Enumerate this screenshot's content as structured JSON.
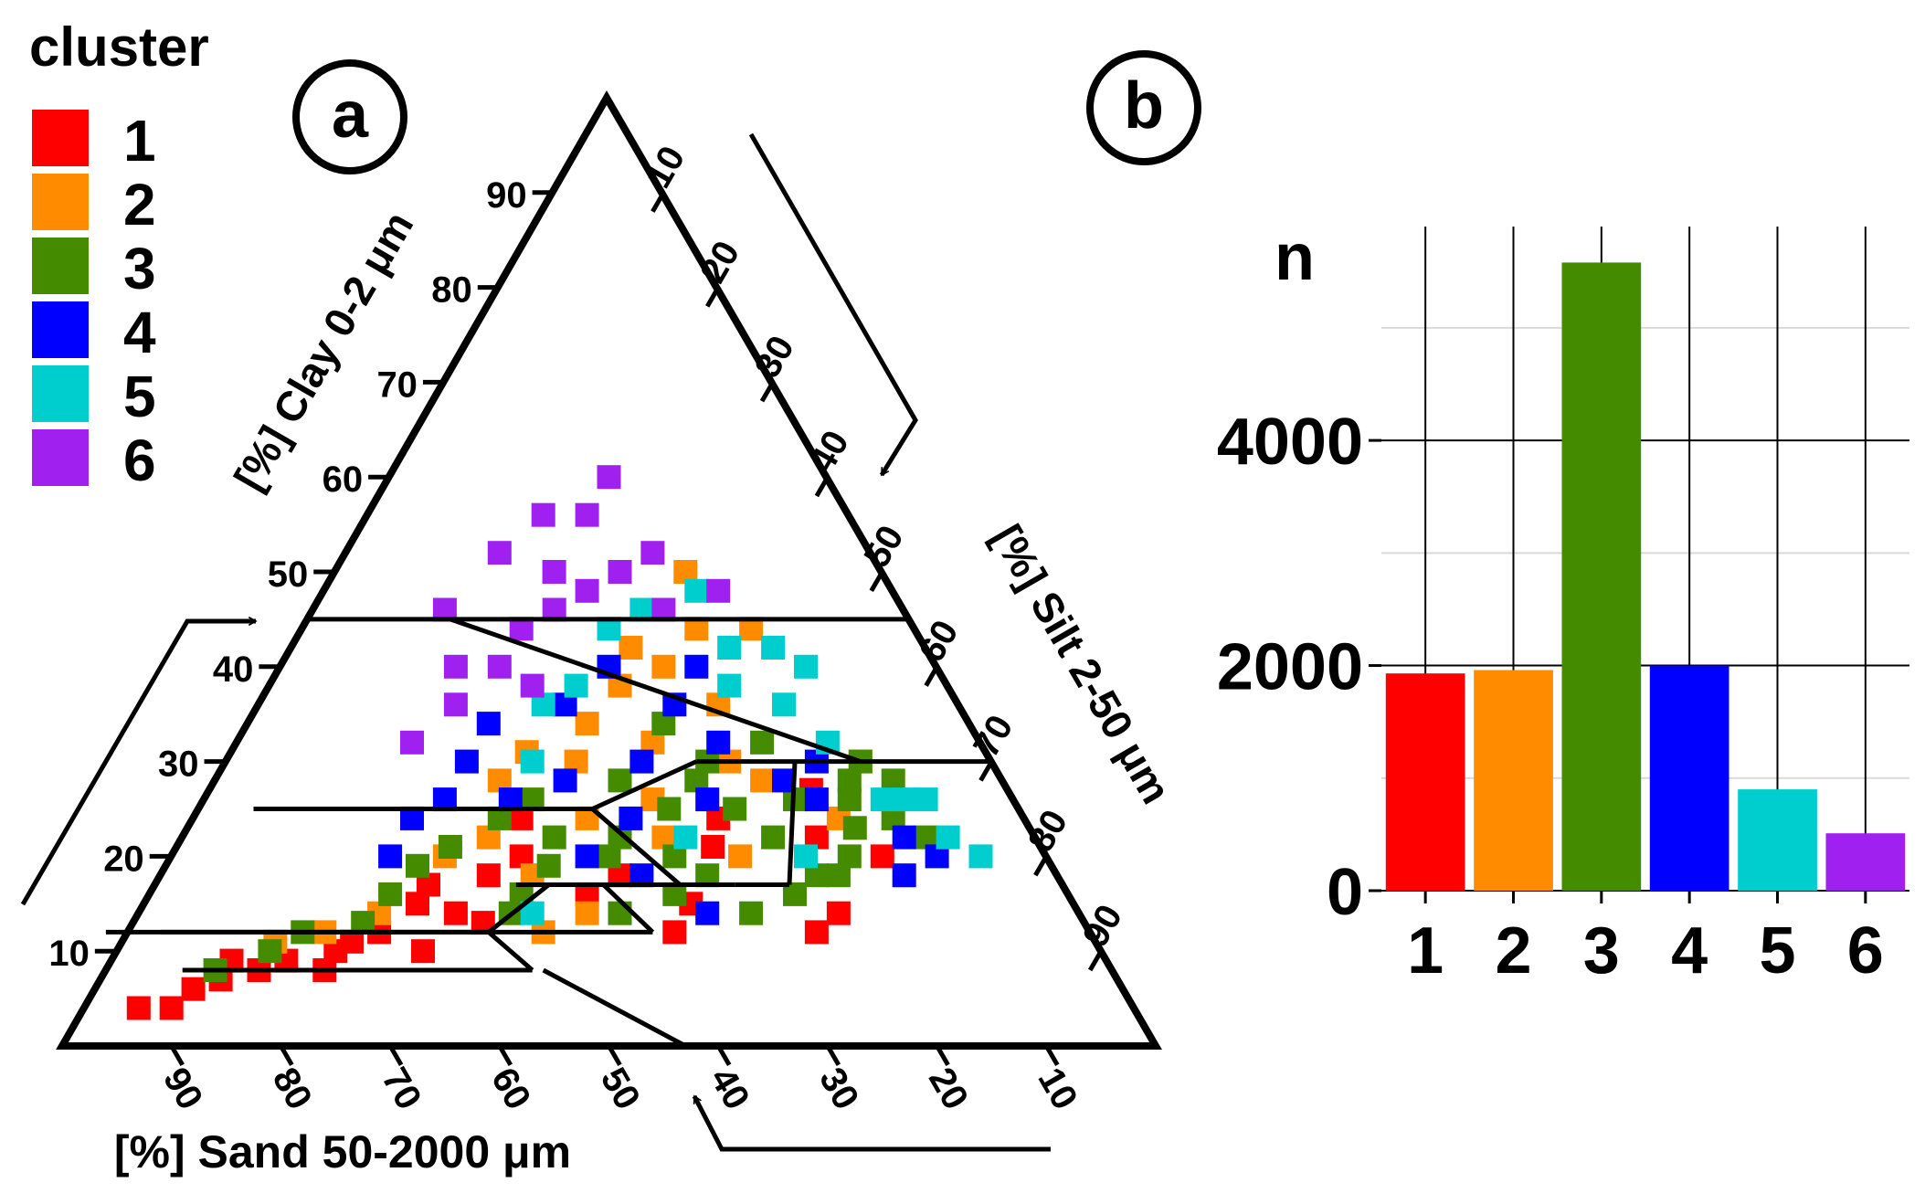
{
  "legend": {
    "title": "cluster",
    "entries": [
      {
        "label": "1",
        "color": "#ff0000"
      },
      {
        "label": "2",
        "color": "#ff8c00"
      },
      {
        "label": "3",
        "color": "#458b00"
      },
      {
        "label": "4",
        "color": "#0000ff"
      },
      {
        "label": "5",
        "color": "#00cdcd"
      },
      {
        "label": "6",
        "color": "#a020f0"
      }
    ]
  },
  "panel_labels": {
    "a": "a",
    "b": "b"
  },
  "chart_data": [
    {
      "type": "scatter",
      "subtype": "ternary",
      "title": "",
      "axes": {
        "clay": {
          "label": "[%] Clay 0-2 μm",
          "ticks": [
            "10",
            "20",
            "30",
            "40",
            "50",
            "60",
            "70",
            "80",
            "90"
          ]
        },
        "silt": {
          "label": "[%] Silt 2-50 μm",
          "ticks": [
            "10",
            "20",
            "30",
            "40",
            "50",
            "60",
            "70",
            "80",
            "90"
          ]
        },
        "sand": {
          "label": "[%] Sand 50-2000 μm",
          "ticks": [
            "90",
            "80",
            "70",
            "60",
            "50",
            "40",
            "30",
            "20",
            "10"
          ]
        }
      },
      "class_boundaries": [
        [
          [
            55,
            45
          ],
          [
            0,
            45
          ]
        ],
        [
          [
            42,
            45
          ],
          [
            12,
            30
          ]
        ],
        [
          [
            12,
            30
          ],
          [
            0,
            30
          ]
        ],
        [
          [
            27,
            30
          ],
          [
            12,
            30
          ]
        ],
        [
          [
            39,
            25
          ],
          [
            27,
            30
          ]
        ],
        [
          [
            70,
            25
          ],
          [
            39,
            25
          ]
        ],
        [
          [
            39,
            25
          ],
          [
            35,
            17
          ]
        ],
        [
          [
            50,
            17
          ],
          [
            35,
            17
          ]
        ],
        [
          [
            55,
            12
          ],
          [
            47,
            17
          ]
        ],
        [
          [
            90,
            12
          ],
          [
            55,
            12
          ]
        ],
        [
          [
            55,
            12
          ],
          [
            53,
            8
          ]
        ],
        [
          [
            85,
            8
          ],
          [
            53,
            8
          ]
        ],
        [
          [
            52,
            8
          ],
          [
            43,
            0
          ]
        ],
        [
          [
            18,
            30
          ],
          [
            25,
            17
          ]
        ],
        [
          [
            25,
            17
          ],
          [
            30,
            17
          ]
        ],
        [
          [
            30,
            17
          ],
          [
            42,
            17
          ]
        ],
        [
          [
            42,
            17
          ],
          [
            40,
            12
          ]
        ],
        [
          [
            40,
            12
          ],
          [
            85,
            12
          ]
        ]
      ],
      "series": [
        {
          "name": "1",
          "points": [
            [
              91,
              4
            ],
            [
              88,
              4
            ],
            [
              85,
              6
            ],
            [
              82,
              7
            ],
            [
              80,
              9
            ],
            [
              78,
              8
            ],
            [
              75,
              9
            ],
            [
              72,
              8
            ],
            [
              70,
              10
            ],
            [
              68,
              11
            ],
            [
              65,
              12
            ],
            [
              60,
              15
            ],
            [
              57,
              14
            ],
            [
              55,
              13
            ],
            [
              52,
              18
            ],
            [
              48,
              20
            ],
            [
              44,
              16
            ],
            [
              40,
              18
            ],
            [
              35,
              15
            ],
            [
              30,
              21
            ],
            [
              28,
              24
            ],
            [
              25,
              12
            ],
            [
              20,
              22
            ],
            [
              18,
              27
            ],
            [
              15,
              20
            ],
            [
              62,
              10
            ],
            [
              58,
              17
            ],
            [
              46,
              24
            ],
            [
              38,
              12
            ],
            [
              22,
              14
            ]
          ]
        },
        {
          "name": "2",
          "points": [
            [
              75,
              11
            ],
            [
              70,
              12
            ],
            [
              64,
              14
            ],
            [
              55,
              20
            ],
            [
              50,
              22
            ],
            [
              46,
              28
            ],
            [
              42,
              31
            ],
            [
              38,
              30
            ],
            [
              35,
              34
            ],
            [
              30,
              38
            ],
            [
              27,
              42
            ],
            [
              25,
              40
            ],
            [
              22,
              36
            ],
            [
              20,
              44
            ],
            [
              15,
              44
            ],
            [
              18,
              50
            ],
            [
              22,
              28
            ],
            [
              28,
              20
            ],
            [
              33,
              26
            ],
            [
              40,
              24
            ],
            [
              45,
              14
            ],
            [
              50,
              12
            ],
            [
              30,
              32
            ],
            [
              24,
              30
            ],
            [
              12,
              30
            ],
            [
              34,
              22
            ],
            [
              48,
              18
            ],
            [
              17,
              24
            ]
          ]
        },
        {
          "name": "3",
          "points": [
            [
              82,
              8
            ],
            [
              76,
              10
            ],
            [
              72,
              12
            ],
            [
              66,
              13
            ],
            [
              62,
              16
            ],
            [
              58,
              19
            ],
            [
              54,
              21
            ],
            [
              50,
              16
            ],
            [
              46,
              19
            ],
            [
              44,
              22
            ],
            [
              40,
              20
            ],
            [
              36,
              16
            ],
            [
              34,
              20
            ],
            [
              32,
              25
            ],
            [
              28,
              28
            ],
            [
              26,
              25
            ],
            [
              24,
              22
            ],
            [
              20,
              26
            ],
            [
              18,
              20
            ],
            [
              16,
              23
            ],
            [
              14,
              28
            ],
            [
              12,
              24
            ],
            [
              10,
              28
            ],
            [
              22,
              18
            ],
            [
              30,
              14
            ],
            [
              38,
              22
            ],
            [
              42,
              14
            ],
            [
              48,
              24
            ],
            [
              28,
              34
            ],
            [
              20,
              32
            ],
            [
              15,
              26
            ],
            [
              35,
              28
            ],
            [
              25,
              16
            ],
            [
              12,
              30
            ],
            [
              10,
              22
            ],
            [
              26,
              30
            ],
            [
              44,
              26
            ],
            [
              32,
              18
            ],
            [
              20,
              18
            ],
            [
              52,
              14
            ]
          ]
        },
        {
          "name": "4",
          "points": [
            [
              60,
              20
            ],
            [
              56,
              24
            ],
            [
              52,
              26
            ],
            [
              48,
              30
            ],
            [
              44,
              34
            ],
            [
              40,
              28
            ],
            [
              36,
              24
            ],
            [
              32,
              30
            ],
            [
              28,
              26
            ],
            [
              24,
              32
            ],
            [
              20,
              28
            ],
            [
              16,
              30
            ],
            [
              12,
              22
            ],
            [
              30,
              40
            ],
            [
              26,
              36
            ],
            [
              22,
              40
            ],
            [
              36,
              36
            ],
            [
              42,
              20
            ],
            [
              38,
              18
            ],
            [
              18,
              26
            ],
            [
              10,
              20
            ],
            [
              34,
              14
            ],
            [
              46,
              26
            ],
            [
              14,
              18
            ]
          ]
        },
        {
          "name": "5",
          "points": [
            [
              50,
              14
            ],
            [
              42,
              30
            ],
            [
              38,
              36
            ],
            [
              34,
              38
            ],
            [
              28,
              44
            ],
            [
              24,
              46
            ],
            [
              20,
              38
            ],
            [
              16,
              36
            ],
            [
              14,
              32
            ],
            [
              10,
              26
            ],
            [
              8,
              22
            ],
            [
              6,
              20
            ],
            [
              12,
              40
            ],
            [
              18,
              42
            ],
            [
              32,
              22
            ],
            [
              22,
              20
            ],
            [
              12,
              26
            ],
            [
              8,
              26
            ],
            [
              18,
              48
            ],
            [
              14,
              42
            ]
          ]
        },
        {
          "name": "6",
          "points": [
            [
              52,
              32
            ],
            [
              46,
              36
            ],
            [
              44,
              40
            ],
            [
              40,
              40
            ],
            [
              36,
              44
            ],
            [
              32,
              46
            ],
            [
              28,
              48
            ],
            [
              24,
              50
            ],
            [
              20,
              52
            ],
            [
              24,
              56
            ],
            [
              20,
              60
            ],
            [
              30,
              50
            ],
            [
              38,
              38
            ],
            [
              16,
              48
            ],
            [
              22,
              46
            ],
            [
              42,
              46
            ],
            [
              34,
              52
            ],
            [
              28,
              56
            ]
          ]
        }
      ],
      "axis_order_note": "points are [sand%, clay%]"
    },
    {
      "type": "bar",
      "title": "",
      "ylabel": "n",
      "xlabel": "",
      "categories": [
        "1",
        "2",
        "3",
        "4",
        "5",
        "6"
      ],
      "values": [
        1930,
        1960,
        5580,
        2000,
        900,
        510
      ],
      "yticks": [
        "0",
        "2000",
        "4000"
      ],
      "ylim": [
        0,
        5900
      ],
      "grid": true
    }
  ]
}
